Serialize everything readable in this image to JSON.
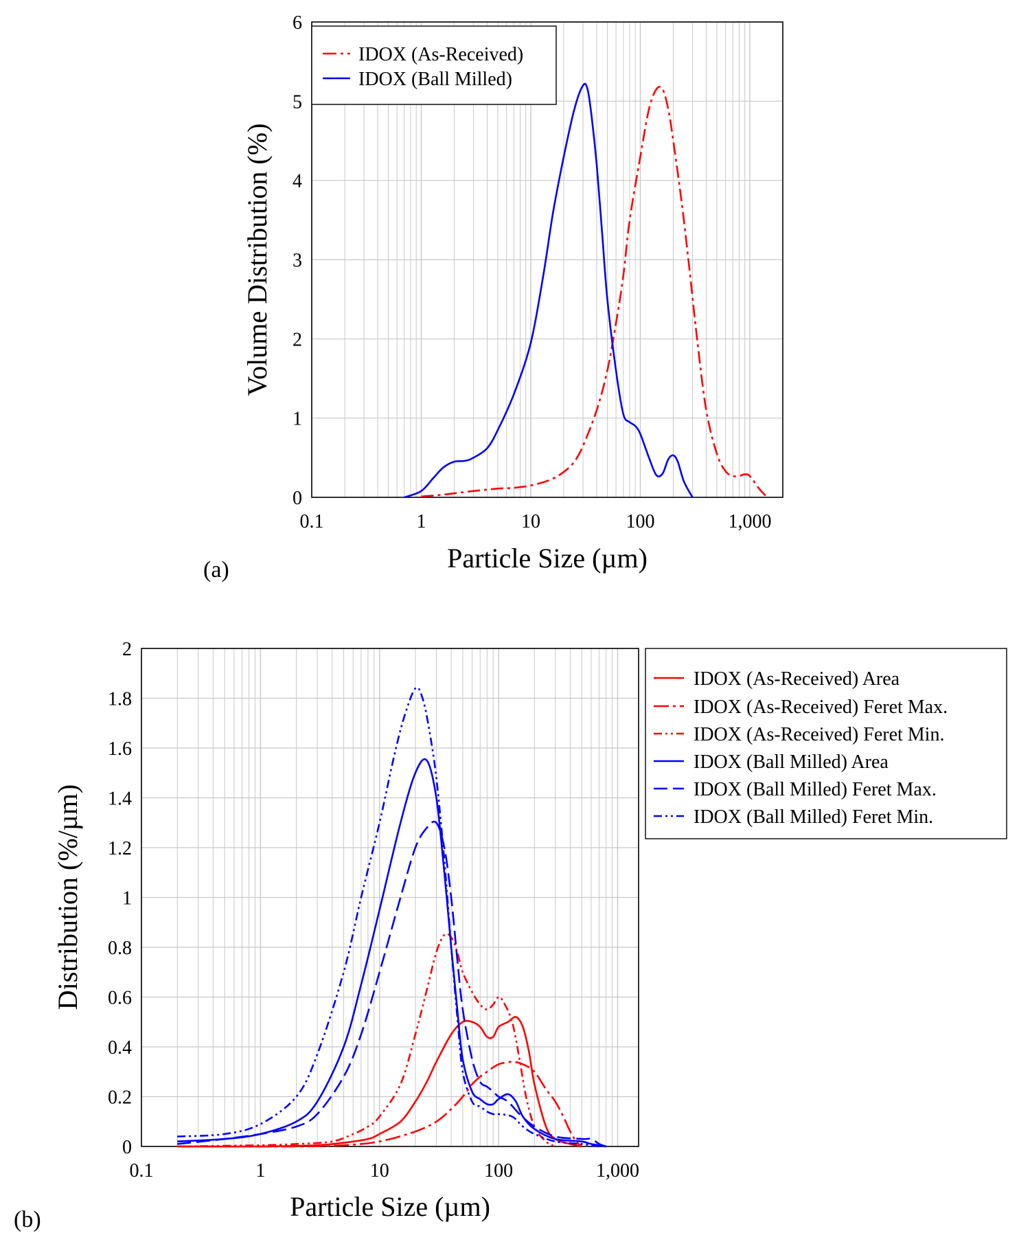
{
  "chart_data": [
    {
      "type": "line",
      "panel_label": "(a)",
      "xlabel": "Particle Size (µm)",
      "ylabel": "Volume Distribution (%)",
      "xscale": "log",
      "xlim": [
        0.1,
        2000
      ],
      "ylim": [
        0,
        6
      ],
      "xticks": [
        0.1,
        1,
        10,
        100,
        1000
      ],
      "xtick_labels": [
        "0.1",
        "1",
        "10",
        "100",
        "1,000"
      ],
      "yticks": [
        0,
        1,
        2,
        3,
        4,
        5,
        6
      ],
      "ytick_labels": [
        "0",
        "1",
        "2",
        "3",
        "4",
        "5",
        "6"
      ],
      "grid": true,
      "legend_position": "top-left",
      "series": [
        {
          "name": "IDOX (As-Received)",
          "color": "#ff0000",
          "dash": "dash-dot",
          "points": [
            [
              1.0,
              0.01
            ],
            [
              1.5,
              0.03
            ],
            [
              2,
              0.05
            ],
            [
              3,
              0.08
            ],
            [
              5,
              0.11
            ],
            [
              7,
              0.12
            ],
            [
              10,
              0.15
            ],
            [
              15,
              0.22
            ],
            [
              20,
              0.32
            ],
            [
              25,
              0.45
            ],
            [
              30,
              0.65
            ],
            [
              40,
              1.1
            ],
            [
              50,
              1.6
            ],
            [
              60,
              2.2
            ],
            [
              70,
              2.8
            ],
            [
              80,
              3.5
            ],
            [
              100,
              4.3
            ],
            [
              120,
              4.9
            ],
            [
              140,
              5.15
            ],
            [
              160,
              5.15
            ],
            [
              180,
              4.9
            ],
            [
              200,
              4.5
            ],
            [
              240,
              3.7
            ],
            [
              280,
              2.9
            ],
            [
              330,
              2.0
            ],
            [
              400,
              1.1
            ],
            [
              500,
              0.55
            ],
            [
              600,
              0.33
            ],
            [
              700,
              0.27
            ],
            [
              800,
              0.27
            ],
            [
              900,
              0.29
            ],
            [
              1000,
              0.27
            ],
            [
              1200,
              0.12
            ],
            [
              1400,
              0.02
            ],
            [
              1500,
              0.0
            ]
          ]
        },
        {
          "name": "IDOX (Ball Milled)",
          "color": "#0000ff",
          "dash": "solid",
          "points": [
            [
              0.7,
              0.0
            ],
            [
              1.0,
              0.08
            ],
            [
              1.3,
              0.25
            ],
            [
              1.6,
              0.38
            ],
            [
              2.0,
              0.45
            ],
            [
              2.5,
              0.46
            ],
            [
              3.0,
              0.5
            ],
            [
              4.0,
              0.62
            ],
            [
              5.0,
              0.85
            ],
            [
              7.0,
              1.3
            ],
            [
              10,
              1.95
            ],
            [
              13,
              2.8
            ],
            [
              16,
              3.6
            ],
            [
              20,
              4.3
            ],
            [
              25,
              4.9
            ],
            [
              30,
              5.2
            ],
            [
              33,
              5.15
            ],
            [
              36,
              4.8
            ],
            [
              40,
              4.2
            ],
            [
              45,
              3.3
            ],
            [
              50,
              2.5
            ],
            [
              60,
              1.6
            ],
            [
              70,
              1.05
            ],
            [
              80,
              0.95
            ],
            [
              90,
              0.9
            ],
            [
              100,
              0.8
            ],
            [
              120,
              0.5
            ],
            [
              140,
              0.28
            ],
            [
              160,
              0.3
            ],
            [
              180,
              0.48
            ],
            [
              200,
              0.53
            ],
            [
              220,
              0.45
            ],
            [
              250,
              0.2
            ],
            [
              300,
              0.0
            ]
          ]
        }
      ]
    },
    {
      "type": "line",
      "panel_label": "(b)",
      "xlabel": "Particle Size (µm)",
      "ylabel": "Distribution (%/µm)",
      "xscale": "log",
      "xlim": [
        0.1,
        1500
      ],
      "ylim": [
        0,
        2
      ],
      "xticks": [
        0.1,
        1,
        10,
        100,
        1000
      ],
      "xtick_labels": [
        "0.1",
        "1",
        "10",
        "100",
        "1,000"
      ],
      "yticks": [
        0,
        0.2,
        0.4,
        0.6,
        0.8,
        1,
        1.2,
        1.4,
        1.6,
        1.8,
        2
      ],
      "ytick_labels": [
        "0",
        "0.2",
        "0.4",
        "0.6",
        "0.8",
        "1",
        "1.2",
        "1.4",
        "1.6",
        "1.8",
        "2"
      ],
      "grid": true,
      "legend_position": "outside-right",
      "series": [
        {
          "name": "IDOX (As-Received) Area",
          "color": "#ff0000",
          "dash": "solid",
          "points": [
            [
              0.2,
              0.0
            ],
            [
              1,
              0.0
            ],
            [
              3,
              0.005
            ],
            [
              5,
              0.015
            ],
            [
              8,
              0.03
            ],
            [
              10,
              0.05
            ],
            [
              15,
              0.1
            ],
            [
              20,
              0.18
            ],
            [
              25,
              0.26
            ],
            [
              30,
              0.34
            ],
            [
              40,
              0.45
            ],
            [
              50,
              0.5
            ],
            [
              60,
              0.5
            ],
            [
              70,
              0.48
            ],
            [
              80,
              0.44
            ],
            [
              90,
              0.44
            ],
            [
              100,
              0.48
            ],
            [
              120,
              0.5
            ],
            [
              140,
              0.52
            ],
            [
              160,
              0.48
            ],
            [
              180,
              0.38
            ],
            [
              200,
              0.25
            ],
            [
              250,
              0.08
            ],
            [
              300,
              0.03
            ],
            [
              400,
              0.01
            ],
            [
              500,
              0.0
            ]
          ]
        },
        {
          "name": "IDOX (As-Received) Feret Max.",
          "color": "#ff0000",
          "dash": "long-dash-dot",
          "points": [
            [
              0.2,
              0.0
            ],
            [
              2,
              0.0
            ],
            [
              5,
              0.005
            ],
            [
              10,
              0.02
            ],
            [
              20,
              0.06
            ],
            [
              30,
              0.1
            ],
            [
              40,
              0.15
            ],
            [
              50,
              0.2
            ],
            [
              60,
              0.25
            ],
            [
              70,
              0.28
            ],
            [
              80,
              0.3
            ],
            [
              100,
              0.33
            ],
            [
              130,
              0.34
            ],
            [
              160,
              0.33
            ],
            [
              200,
              0.3
            ],
            [
              250,
              0.23
            ],
            [
              300,
              0.18
            ],
            [
              350,
              0.12
            ],
            [
              400,
              0.06
            ],
            [
              450,
              0.02
            ],
            [
              500,
              0.0
            ]
          ]
        },
        {
          "name": "IDOX (As-Received) Feret Min.",
          "color": "#ff0000",
          "dash": "dash-dot-dot",
          "points": [
            [
              0.2,
              0.0
            ],
            [
              1,
              0.005
            ],
            [
              2,
              0.01
            ],
            [
              4,
              0.02
            ],
            [
              6,
              0.05
            ],
            [
              8,
              0.08
            ],
            [
              10,
              0.12
            ],
            [
              15,
              0.25
            ],
            [
              20,
              0.45
            ],
            [
              25,
              0.63
            ],
            [
              30,
              0.78
            ],
            [
              35,
              0.85
            ],
            [
              40,
              0.84
            ],
            [
              45,
              0.78
            ],
            [
              50,
              0.7
            ],
            [
              60,
              0.62
            ],
            [
              70,
              0.57
            ],
            [
              80,
              0.55
            ],
            [
              90,
              0.57
            ],
            [
              100,
              0.6
            ],
            [
              110,
              0.58
            ],
            [
              130,
              0.5
            ],
            [
              150,
              0.35
            ],
            [
              170,
              0.2
            ],
            [
              200,
              0.08
            ],
            [
              250,
              0.02
            ],
            [
              300,
              0.0
            ]
          ]
        },
        {
          "name": "IDOX (Ball Milled) Area",
          "color": "#0000ff",
          "dash": "solid",
          "points": [
            [
              0.2,
              0.02
            ],
            [
              0.5,
              0.03
            ],
            [
              1,
              0.05
            ],
            [
              2,
              0.1
            ],
            [
              3,
              0.18
            ],
            [
              5,
              0.4
            ],
            [
              7,
              0.65
            ],
            [
              10,
              0.95
            ],
            [
              15,
              1.3
            ],
            [
              20,
              1.5
            ],
            [
              25,
              1.55
            ],
            [
              30,
              1.4
            ],
            [
              35,
              1.1
            ],
            [
              40,
              0.8
            ],
            [
              45,
              0.55
            ],
            [
              50,
              0.35
            ],
            [
              60,
              0.22
            ],
            [
              70,
              0.19
            ],
            [
              80,
              0.17
            ],
            [
              90,
              0.17
            ],
            [
              100,
              0.19
            ],
            [
              120,
              0.21
            ],
            [
              140,
              0.18
            ],
            [
              160,
              0.12
            ],
            [
              200,
              0.07
            ],
            [
              300,
              0.03
            ],
            [
              500,
              0.02
            ],
            [
              600,
              0.01
            ],
            [
              800,
              0.0
            ]
          ]
        },
        {
          "name": "IDOX (Ball Milled) Feret Max.",
          "color": "#0000ff",
          "dash": "long-dash",
          "points": [
            [
              0.2,
              0.01
            ],
            [
              0.5,
              0.03
            ],
            [
              1,
              0.05
            ],
            [
              2,
              0.08
            ],
            [
              3,
              0.13
            ],
            [
              5,
              0.28
            ],
            [
              7,
              0.45
            ],
            [
              10,
              0.7
            ],
            [
              15,
              1.0
            ],
            [
              20,
              1.2
            ],
            [
              25,
              1.28
            ],
            [
              30,
              1.3
            ],
            [
              35,
              1.2
            ],
            [
              40,
              1.0
            ],
            [
              45,
              0.75
            ],
            [
              50,
              0.55
            ],
            [
              60,
              0.35
            ],
            [
              70,
              0.26
            ],
            [
              80,
              0.24
            ],
            [
              90,
              0.22
            ],
            [
              100,
              0.2
            ],
            [
              120,
              0.18
            ],
            [
              150,
              0.13
            ],
            [
              200,
              0.08
            ],
            [
              300,
              0.04
            ],
            [
              500,
              0.03
            ],
            [
              600,
              0.03
            ],
            [
              700,
              0.01
            ],
            [
              800,
              0.0
            ]
          ]
        },
        {
          "name": "IDOX (Ball Milled) Feret Min.",
          "color": "#0000ff",
          "dash": "dash-dot-dot",
          "points": [
            [
              0.2,
              0.04
            ],
            [
              0.5,
              0.05
            ],
            [
              1,
              0.09
            ],
            [
              2,
              0.2
            ],
            [
              3,
              0.37
            ],
            [
              5,
              0.7
            ],
            [
              7,
              1.0
            ],
            [
              10,
              1.3
            ],
            [
              13,
              1.55
            ],
            [
              16,
              1.72
            ],
            [
              20,
              1.84
            ],
            [
              23,
              1.8
            ],
            [
              26,
              1.68
            ],
            [
              30,
              1.48
            ],
            [
              35,
              1.15
            ],
            [
              40,
              0.8
            ],
            [
              45,
              0.52
            ],
            [
              50,
              0.3
            ],
            [
              60,
              0.18
            ],
            [
              70,
              0.16
            ],
            [
              80,
              0.14
            ],
            [
              90,
              0.13
            ],
            [
              100,
              0.13
            ],
            [
              130,
              0.12
            ],
            [
              160,
              0.08
            ],
            [
              200,
              0.05
            ],
            [
              300,
              0.02
            ],
            [
              500,
              0.01
            ],
            [
              700,
              0.0
            ]
          ]
        }
      ]
    }
  ]
}
